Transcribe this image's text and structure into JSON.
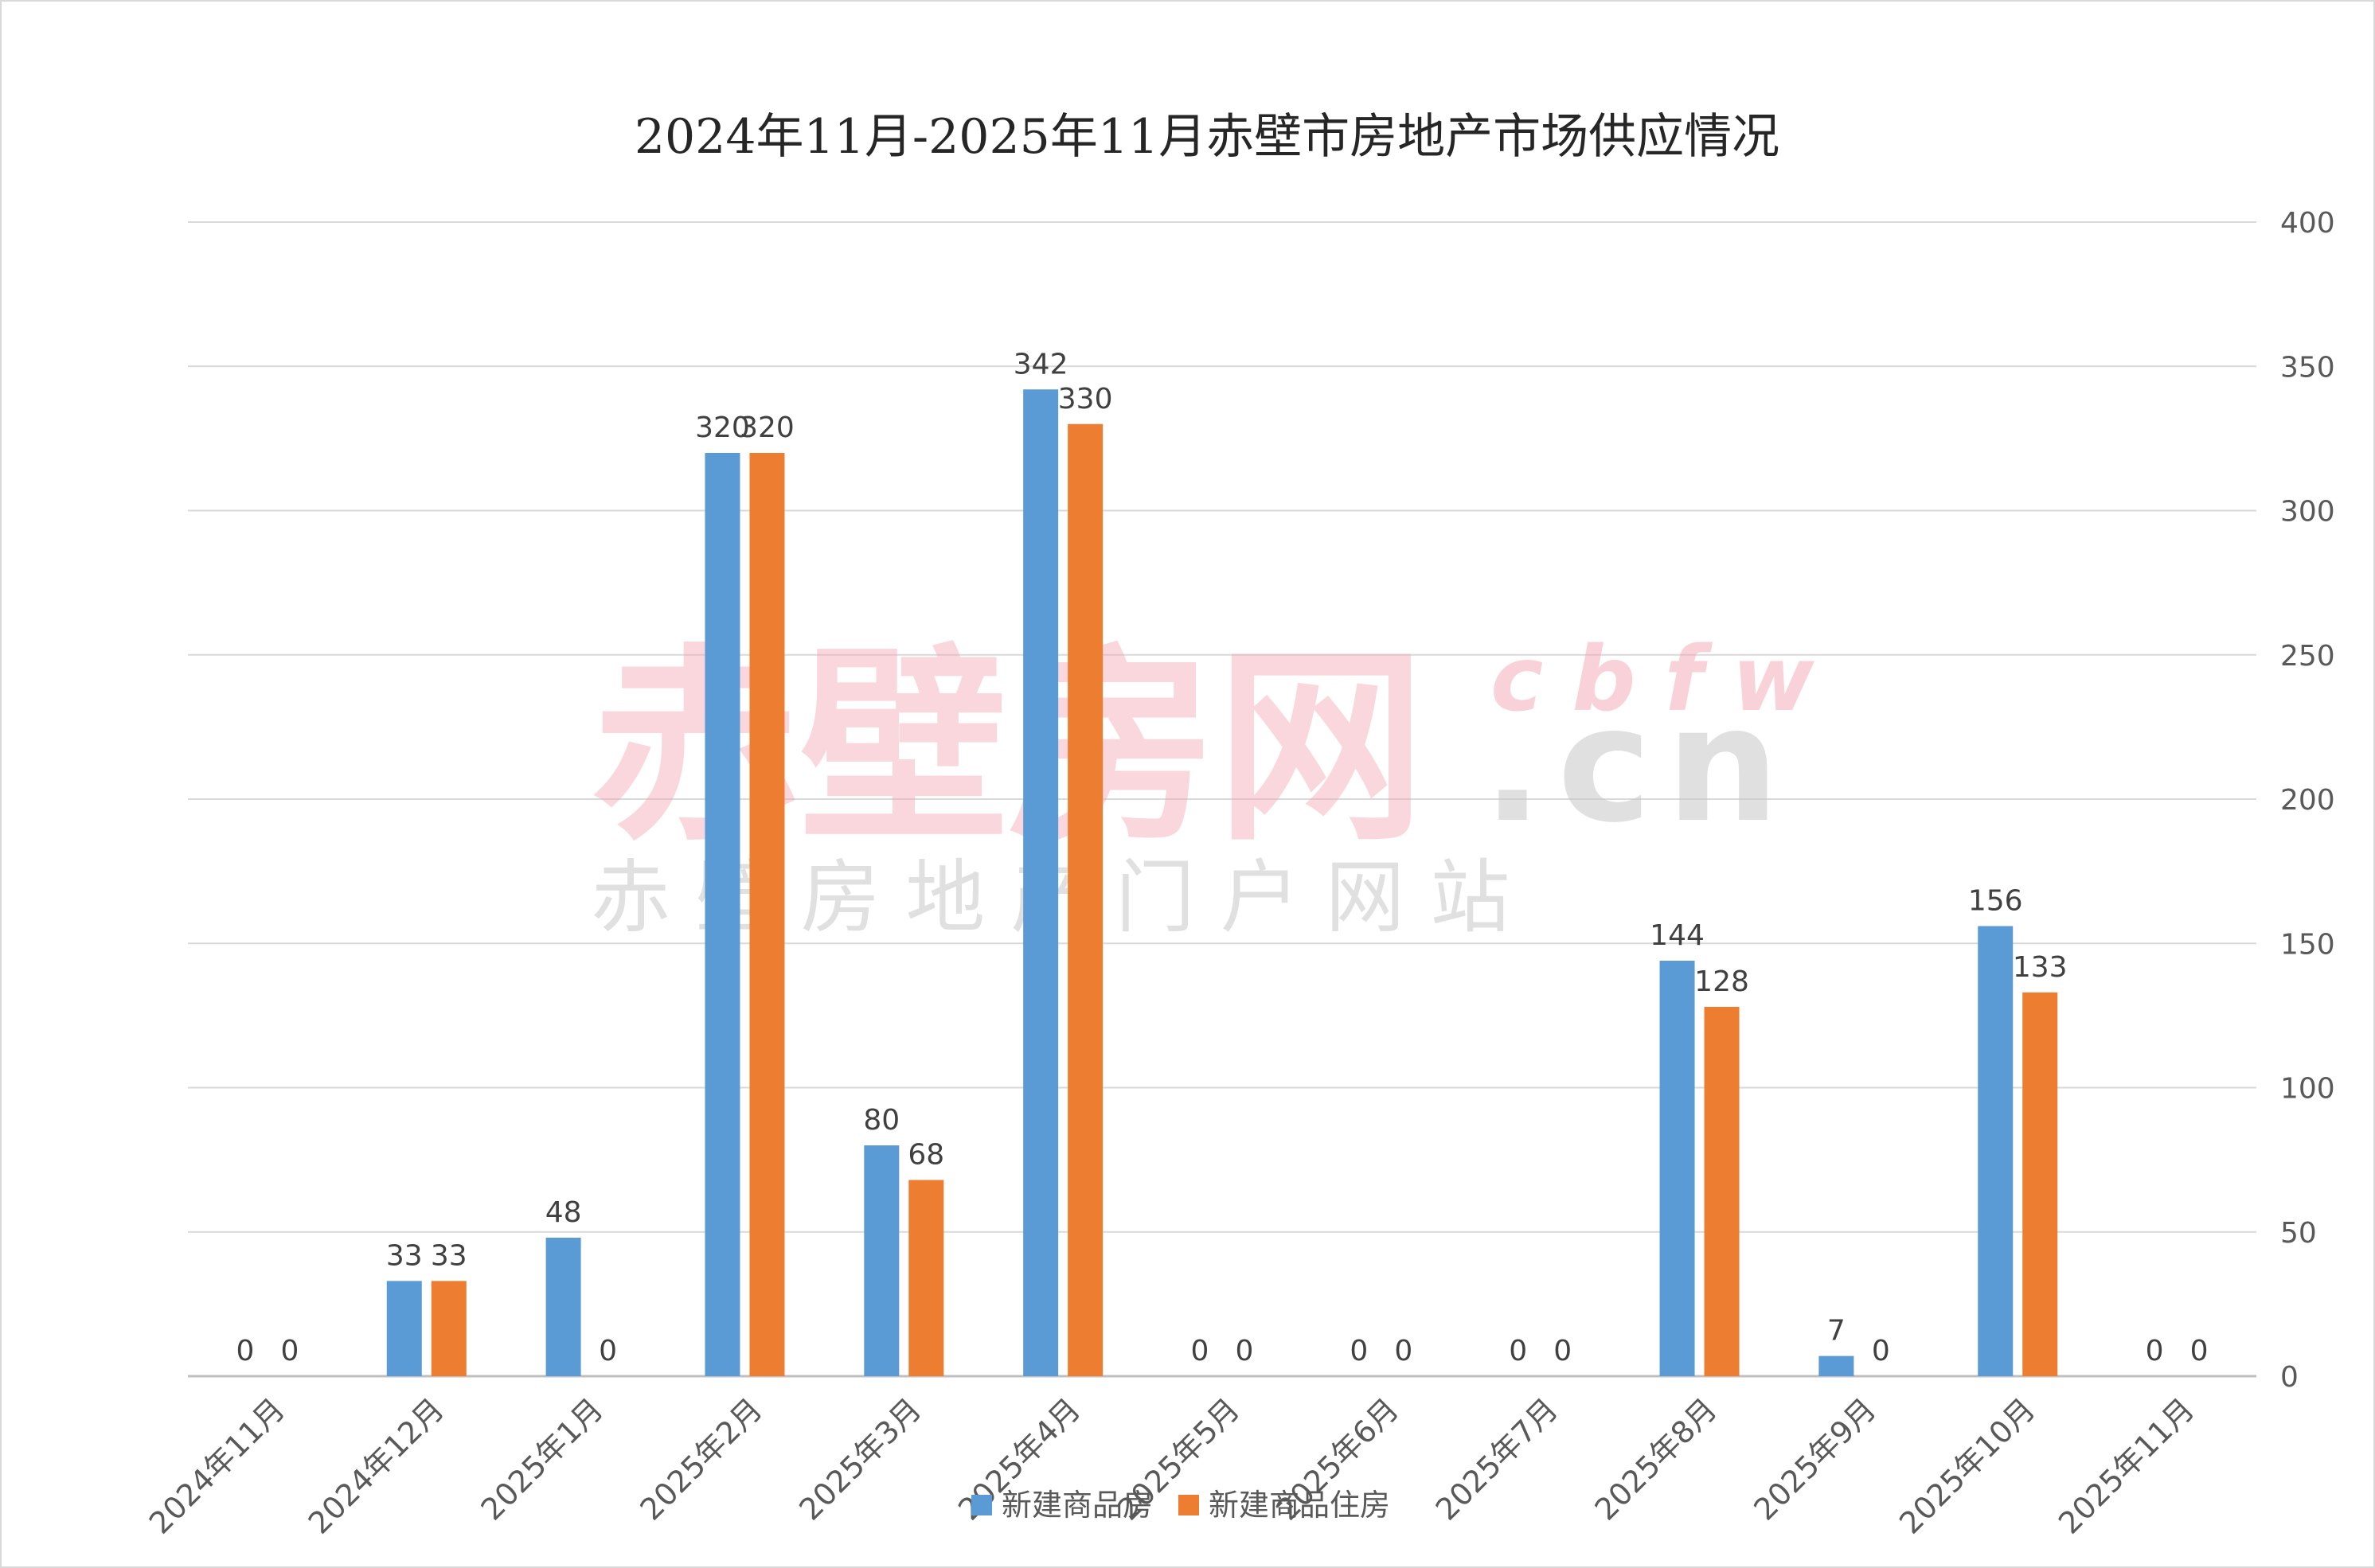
{
  "chart_data": {
    "type": "bar",
    "title": "2024年11月-2025年11月赤壁市房地产市场供应情况",
    "categories": [
      "2024年11月",
      "2024年12月",
      "2025年1月",
      "2025年2月",
      "2025年3月",
      "2025年4月",
      "2025年5月",
      "2025年6月",
      "2025年7月",
      "2025年8月",
      "2025年9月",
      "2025年10月",
      "2025年11月"
    ],
    "series": [
      {
        "name": "新建商品房",
        "color": "#5b9bd5",
        "values": [
          0,
          33,
          48,
          320,
          80,
          342,
          0,
          0,
          0,
          144,
          7,
          156,
          0
        ]
      },
      {
        "name": "新建商品住房",
        "color": "#ed7d31",
        "values": [
          0,
          33,
          0,
          320,
          68,
          330,
          0,
          0,
          0,
          128,
          0,
          133,
          0
        ]
      }
    ],
    "ylim": [
      0,
      400
    ],
    "yticks": [
      0,
      50,
      100,
      150,
      200,
      250,
      300,
      350,
      400
    ],
    "y_axis_side": "right",
    "grid": true,
    "legend": "bottom",
    "data_labels": true
  },
  "watermark": {
    "brand": "赤壁房网",
    "domain_suffix": ".cn",
    "pinyin": "cbfw",
    "subtitle": "赤 壁 房 地 产 门 户 网 站"
  }
}
